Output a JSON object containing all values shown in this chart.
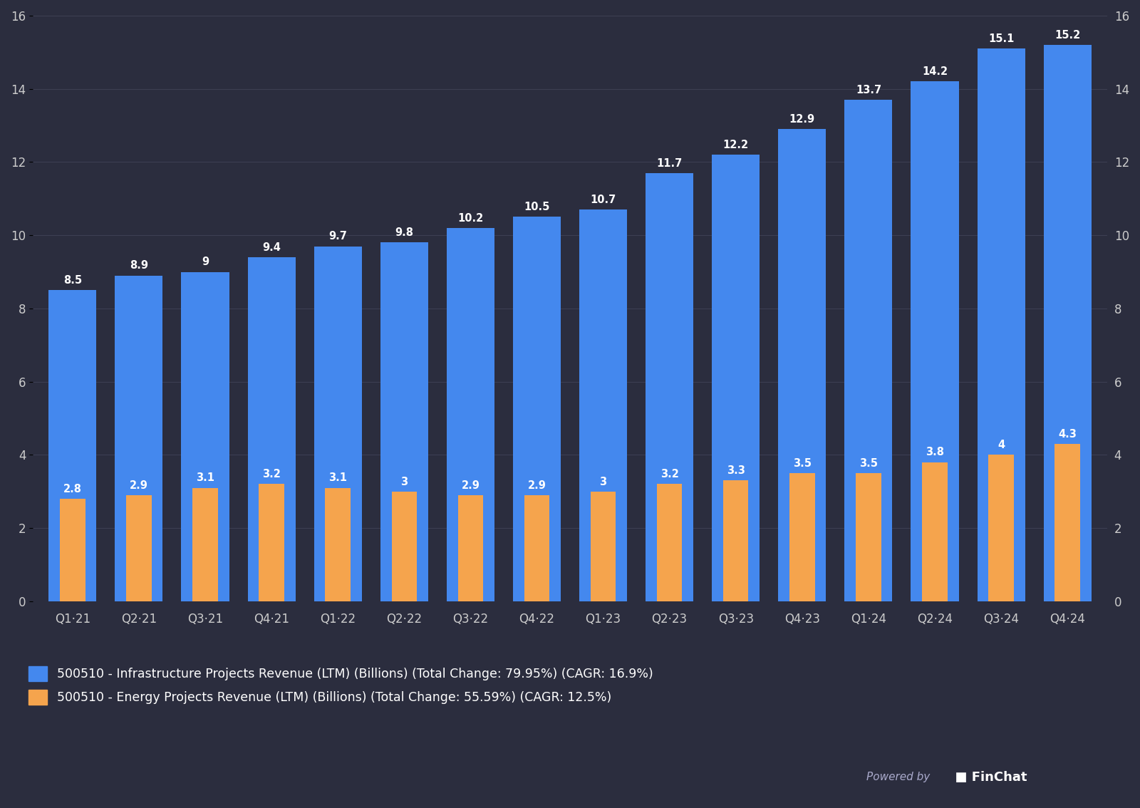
{
  "categories": [
    "Q1‧21",
    "Q2‧21",
    "Q3‧21",
    "Q4‧21",
    "Q1‧22",
    "Q2‧22",
    "Q3‧22",
    "Q4‧22",
    "Q1‧23",
    "Q2‧23",
    "Q3‧23",
    "Q4‧23",
    "Q1‧24",
    "Q2‧24",
    "Q3‧24",
    "Q4‧24"
  ],
  "infra_values": [
    8.5,
    8.9,
    9.0,
    9.4,
    9.7,
    9.8,
    10.2,
    10.5,
    10.7,
    11.7,
    12.2,
    12.9,
    13.7,
    14.2,
    15.1,
    15.2
  ],
  "energy_values": [
    2.8,
    2.9,
    3.1,
    3.2,
    3.1,
    3.0,
    2.9,
    2.9,
    3.0,
    3.2,
    3.3,
    3.5,
    3.5,
    3.8,
    4.0,
    4.3
  ],
  "infra_color": "#4488ee",
  "energy_color": "#f5a44d",
  "background_color": "#2b2d3e",
  "grid_color": "#3d3f52",
  "text_color": "#ffffff",
  "tick_color": "#cccccc",
  "blue_bar_width": 0.72,
  "orange_bar_width": 0.38,
  "ylim": [
    0,
    16
  ],
  "yticks": [
    0,
    2,
    4,
    6,
    8,
    10,
    12,
    14,
    16
  ],
  "label_fontsize": 10.5,
  "tick_fontsize": 12,
  "legend1": "500510 - Infrastructure Projects Revenue (LTM) (Billions) (Total Change: 79.95%) (CAGR: 16.9%)",
  "legend2": "500510 - Energy Projects Revenue (LTM) (Billions) (Total Change: 55.59%) (CAGR: 12.5%)",
  "powered_by_text": "Powered by",
  "finchat_text": "  ■ FinChat"
}
